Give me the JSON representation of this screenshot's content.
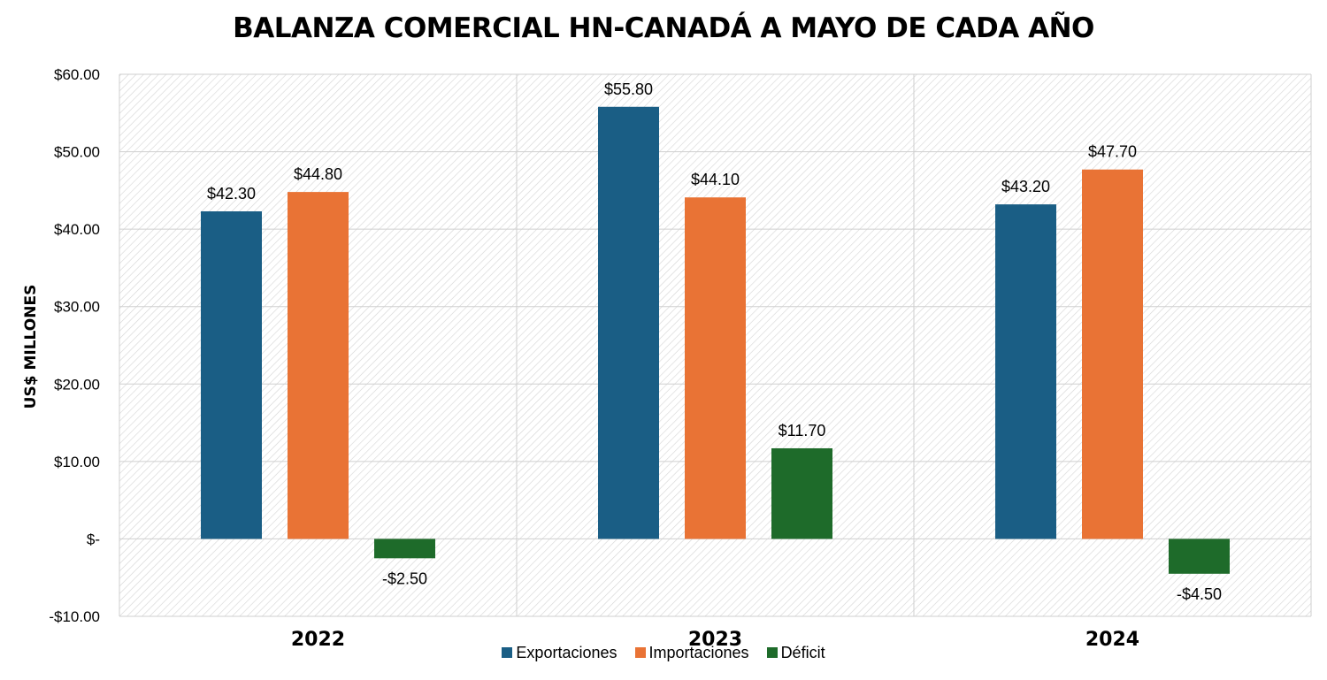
{
  "chart_data": {
    "type": "bar",
    "title": "BALANZA COMERCIAL HN-CANADÁ A MAYO DE CADA AÑO",
    "ylabel": "US$ MILLONES",
    "xlabel": "",
    "categories": [
      "2022",
      "2023",
      "2024"
    ],
    "series": [
      {
        "name": "Exportaciones",
        "color": "#1a5e85",
        "values": [
          42.3,
          55.8,
          43.2
        ],
        "labels": [
          "$42.30",
          "$55.80",
          "$43.20"
        ]
      },
      {
        "name": "Importaciones",
        "color": "#e97335",
        "values": [
          44.8,
          44.1,
          47.7
        ],
        "labels": [
          "$44.80",
          "$44.10",
          "$47.70"
        ]
      },
      {
        "name": "Déficit",
        "color": "#1e6b2a",
        "values": [
          -2.5,
          11.7,
          -4.5
        ],
        "labels": [
          "-$2.50",
          "$11.70",
          "-$4.50"
        ]
      }
    ],
    "ylim": [
      -10,
      60
    ],
    "yticks": [
      60,
      50,
      40,
      30,
      20,
      10,
      0,
      -10
    ],
    "ytick_labels": [
      "$60.00",
      "$50.00",
      "$40.00",
      "$30.00",
      "$20.00",
      "$10.00",
      "$-",
      "-$10.00"
    ],
    "grid": true,
    "legend_position": "bottom"
  }
}
